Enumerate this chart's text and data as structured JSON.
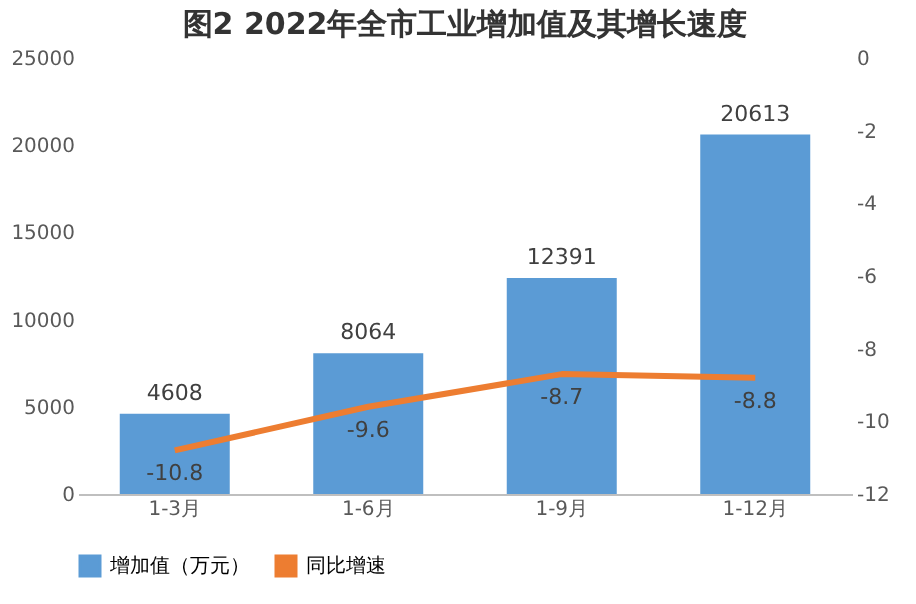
{
  "chart_data": {
    "type": "bar",
    "title": "图2   2022年全市工业增加值及其增长速度",
    "categories": [
      "1-3月",
      "1-6月",
      "1-9月",
      "1-12月"
    ],
    "series": [
      {
        "name": "增加值（万元）",
        "color": "#5b9bd5",
        "values": [
          4608,
          8064,
          12391,
          20613
        ]
      },
      {
        "name": "同比增速",
        "type": "line",
        "axis": "y2",
        "color": "#ed7d31",
        "values": [
          -10.8,
          -9.6,
          -8.7,
          -8.8
        ]
      }
    ],
    "ylim": [
      0,
      25000
    ],
    "yticks": [
      0,
      5000,
      10000,
      15000,
      20000,
      25000
    ],
    "y2lim": [
      -12,
      0
    ],
    "y2ticks": [
      -12,
      -10,
      -8,
      -6,
      -4,
      -2,
      0
    ],
    "data_labels": true,
    "grid": false,
    "legend": "bottom",
    "marker": "none",
    "line_style": "solid"
  }
}
